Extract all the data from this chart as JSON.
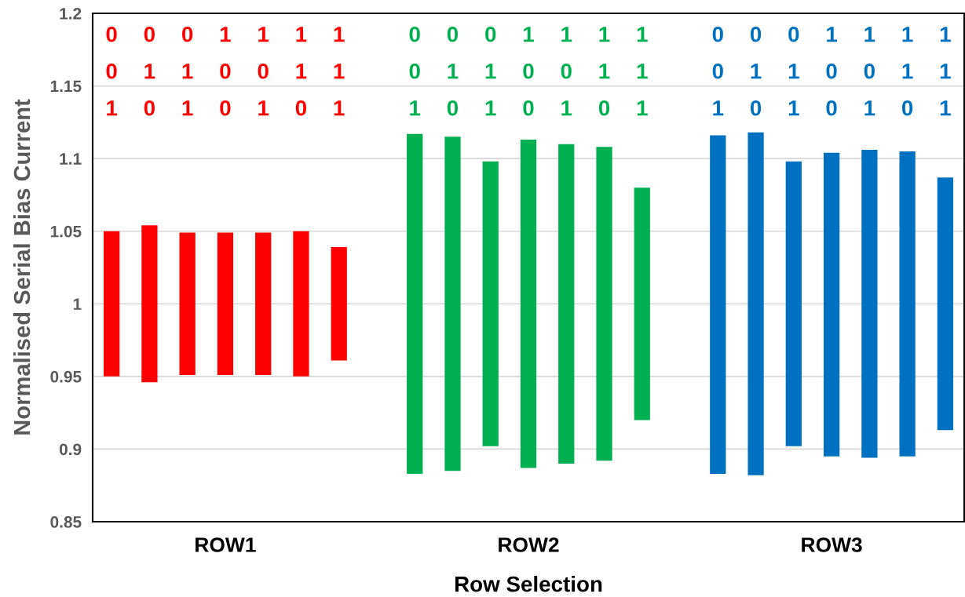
{
  "chart_data": {
    "type": "bar",
    "xlabel": "Row Selection",
    "ylabel": "Normalised Serial Bias Current",
    "categories": [
      null,
      null,
      null,
      "ROW1",
      null,
      null,
      null,
      null,
      null,
      null,
      null,
      "ROW2",
      null,
      null,
      null,
      null,
      null,
      null,
      null,
      "ROW3",
      null,
      null,
      null
    ],
    "base": [
      0.95,
      0.946,
      0.951,
      0.951,
      0.951,
      0.95,
      0.961,
      null,
      0.883,
      0.885,
      0.902,
      0.887,
      0.89,
      0.892,
      0.92,
      null,
      0.883,
      0.882,
      0.902,
      0.895,
      0.894,
      0.895,
      0.913
    ],
    "values": [
      0.1,
      0.108,
      0.098,
      0.098,
      0.098,
      0.1,
      0.078,
      null,
      0.234,
      0.23,
      0.196,
      0.226,
      0.22,
      0.216,
      0.16,
      null,
      0.233,
      0.236,
      0.196,
      0.209,
      0.212,
      0.21,
      0.174
    ],
    "colors": [
      "#ff0000",
      "#ff0000",
      "#ff0000",
      "#ff0000",
      "#ff0000",
      "#ff0000",
      "#ff0000",
      null,
      "#00b050",
      "#00b050",
      "#00b050",
      "#00b050",
      "#00b050",
      "#00b050",
      "#00b050",
      null,
      "#0070c0",
      "#0070c0",
      "#0070c0",
      "#0070c0",
      "#0070c0",
      "#0070c0",
      "#0070c0"
    ],
    "annotations": [
      "0\n0\n1",
      "0\n1\n0",
      "0\n1\n1",
      "1\n0\n0",
      "1\n0\n1",
      "1\n1\n0",
      "1\n1\n1",
      "0\n0\n1",
      "0\n1\n0",
      "0\n1\n1",
      "1\n0\n0",
      "1\n0\n1",
      "1\n1\n0",
      "1\n1\n1",
      "0\n0\n1",
      "0\n1\n0",
      "0\n1\n1",
      "1\n0\n0",
      "1\n0\n1",
      "1\n1\n0",
      "1\n1\n1"
    ],
    "ylim": [
      0.85,
      1.2
    ],
    "yticks": [
      0.85,
      0.9,
      0.95,
      {
        "value": 1,
        "label": "1"
      },
      1.05,
      1.1,
      1.15,
      1.2
    ],
    "grid": "y"
  }
}
